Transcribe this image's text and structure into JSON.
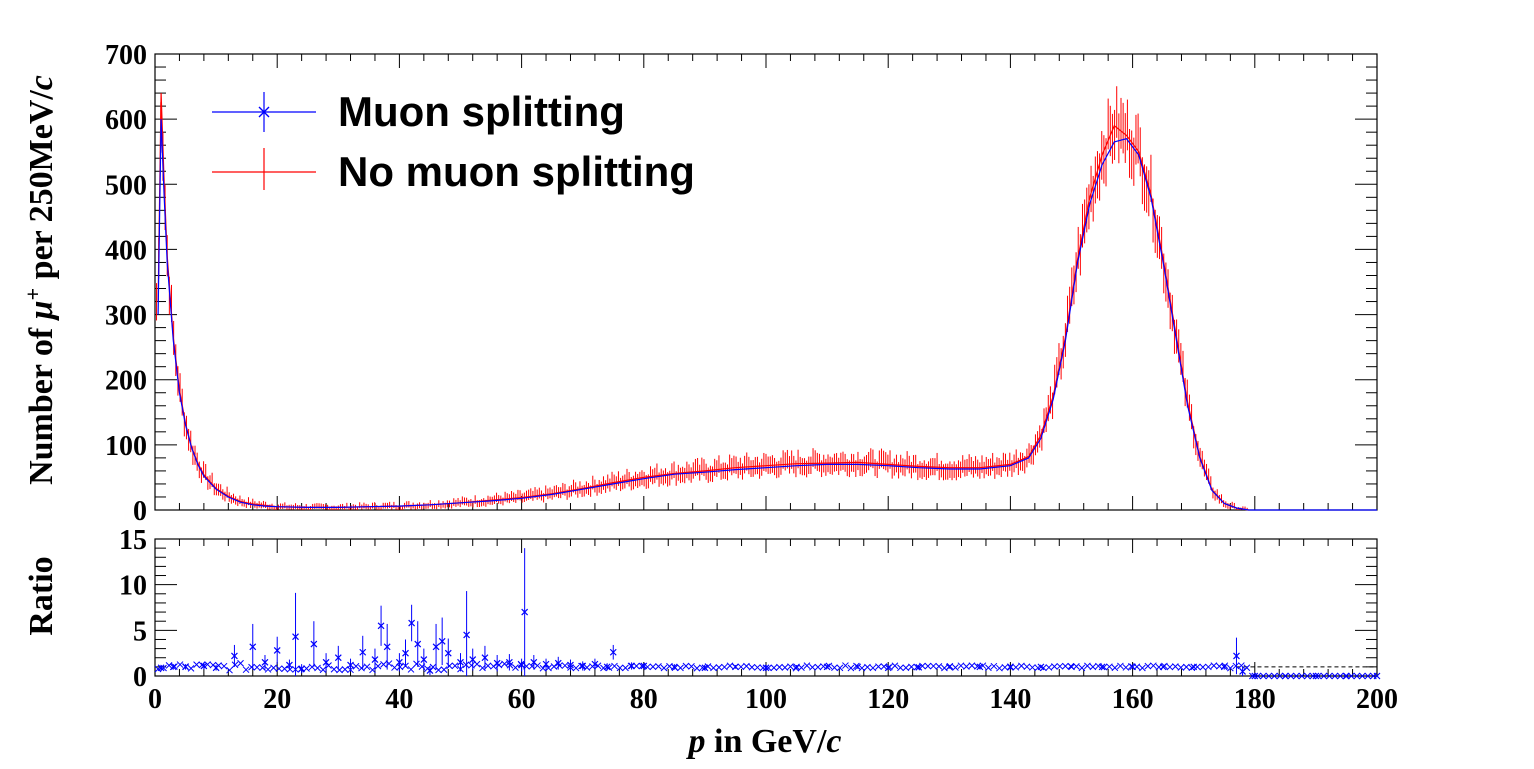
{
  "chart_data": [
    {
      "type": "line",
      "panel": "main",
      "xlabel_parts": [
        "p",
        " in GeV/",
        "c"
      ],
      "ylabel_parts": [
        "Number of  ",
        "μ",
        "+",
        " per 250MeV/",
        "c"
      ],
      "xlim": [
        0,
        200
      ],
      "ylim": [
        0,
        700
      ],
      "x_ticks": [
        "0",
        "20",
        "40",
        "60",
        "80",
        "100",
        "120",
        "140",
        "160",
        "180",
        "200"
      ],
      "y_ticks": [
        "0",
        "100",
        "200",
        "300",
        "400",
        "500",
        "600",
        "700"
      ],
      "legend_position": "top-left",
      "series": [
        {
          "name": "Muon splitting",
          "color": "#0000ff",
          "x": [
            0.5,
            1,
            1.5,
            2,
            3,
            4,
            5,
            6,
            7,
            8,
            10,
            12,
            14,
            16,
            18,
            20,
            25,
            30,
            35,
            40,
            45,
            50,
            55,
            60,
            65,
            70,
            75,
            80,
            85,
            90,
            95,
            100,
            105,
            110,
            115,
            120,
            125,
            130,
            135,
            140,
            143,
            145,
            147,
            149,
            151,
            153,
            155,
            157,
            159,
            161,
            163,
            165,
            167,
            169,
            171,
            173,
            175,
            177,
            179,
            180,
            190,
            200
          ],
          "y": [
            300,
            600,
            480,
            380,
            260,
            180,
            130,
            95,
            70,
            52,
            32,
            20,
            12,
            8,
            6,
            5,
            4,
            4,
            5,
            6,
            8,
            11,
            14,
            18,
            24,
            32,
            40,
            48,
            55,
            58,
            62,
            65,
            68,
            70,
            70,
            68,
            65,
            63,
            63,
            68,
            80,
            110,
            170,
            260,
            380,
            470,
            530,
            565,
            570,
            545,
            480,
            380,
            270,
            160,
            80,
            30,
            10,
            3,
            0,
            0,
            0,
            0
          ]
        },
        {
          "name": "No muon splitting",
          "color": "#ff0000",
          "x": [
            0.5,
            1,
            1.5,
            2,
            3,
            4,
            5,
            6,
            7,
            8,
            10,
            12,
            14,
            16,
            18,
            20,
            25,
            30,
            35,
            40,
            45,
            50,
            55,
            60,
            65,
            70,
            75,
            80,
            85,
            90,
            95,
            100,
            105,
            110,
            115,
            120,
            125,
            130,
            135,
            140,
            143,
            145,
            147,
            149,
            151,
            153,
            155,
            157,
            159,
            161,
            163,
            165,
            167,
            169,
            171,
            173,
            175,
            177,
            179
          ],
          "y": [
            320,
            640,
            500,
            390,
            265,
            185,
            132,
            96,
            72,
            54,
            33,
            21,
            13,
            9,
            7,
            5,
            4,
            4,
            5,
            6,
            8,
            11,
            15,
            19,
            25,
            33,
            42,
            50,
            56,
            60,
            65,
            68,
            71,
            72,
            73,
            70,
            67,
            65,
            65,
            70,
            82,
            115,
            175,
            265,
            385,
            480,
            545,
            590,
            575,
            550,
            485,
            385,
            275,
            165,
            82,
            31,
            10,
            3,
            0
          ]
        }
      ]
    },
    {
      "type": "scatter",
      "panel": "ratio",
      "ylabel": "Ratio",
      "xlim": [
        0,
        200
      ],
      "ylim": [
        0,
        15
      ],
      "y_ticks": [
        "0",
        "5",
        "10",
        "15"
      ],
      "reference_line": 1,
      "series": [
        {
          "name": "",
          "color": "#0000ff",
          "x": [
            1,
            3,
            5,
            8,
            10,
            13,
            16,
            18,
            20,
            22,
            23,
            24,
            26,
            28,
            30,
            32,
            34,
            36,
            37,
            38,
            40,
            41,
            42,
            43,
            44,
            45,
            46,
            47,
            48,
            50,
            51,
            52,
            54,
            56,
            58,
            60,
            60.5,
            62,
            64,
            66,
            68,
            70,
            72,
            74,
            75,
            78,
            80,
            85,
            90,
            95,
            100,
            105,
            110,
            115,
            120,
            125,
            130,
            135,
            140,
            145,
            150,
            155,
            160,
            165,
            170,
            175,
            177,
            178,
            180,
            185,
            190,
            195,
            200
          ],
          "y": [
            0.9,
            1.0,
            1.0,
            1.1,
            0.9,
            2.2,
            3.2,
            1.5,
            2.8,
            1.2,
            4.3,
            0.8,
            3.5,
            1.5,
            2.0,
            1.2,
            2.6,
            1.8,
            5.5,
            3.2,
            1.5,
            2.5,
            5.8,
            3.5,
            1.8,
            0.6,
            3.2,
            3.8,
            2.5,
            1.5,
            4.5,
            1.8,
            2.0,
            1.4,
            1.5,
            1.2,
            7.0,
            1.5,
            1.3,
            1.4,
            1.2,
            1.1,
            1.3,
            1.0,
            2.6,
            1.1,
            1.1,
            1.0,
            0.9,
            1.0,
            0.9,
            1.0,
            1.0,
            1.0,
            0.9,
            0.95,
            1.0,
            1.0,
            0.95,
            1.0,
            1.0,
            1.0,
            1.0,
            1.0,
            1.0,
            1.0,
            2.2,
            0.5,
            0,
            0,
            0,
            0,
            0
          ],
          "err": [
            0.3,
            0.3,
            0.3,
            0.4,
            0.3,
            1.2,
            2.5,
            0.8,
            1.5,
            0.6,
            4.8,
            0.5,
            2.5,
            1.0,
            1.3,
            0.7,
            1.8,
            1.2,
            2.2,
            2.5,
            1.0,
            1.5,
            2.0,
            2.5,
            1.2,
            0.5,
            2.5,
            2.6,
            1.6,
            1.0,
            4.8,
            1.2,
            1.3,
            0.9,
            0.9,
            0.7,
            7.0,
            0.8,
            0.6,
            0.7,
            0.6,
            0.5,
            0.6,
            0.4,
            0.8,
            0.4,
            0.3,
            0.3,
            0.2,
            0.2,
            0.2,
            0.2,
            0.2,
            0.2,
            0.2,
            0.2,
            0.2,
            0.2,
            0.2,
            0.1,
            0.1,
            0.1,
            0.1,
            0.1,
            0.1,
            0.3,
            2.0,
            0.5,
            0,
            0,
            0,
            0,
            0
          ]
        }
      ]
    }
  ]
}
